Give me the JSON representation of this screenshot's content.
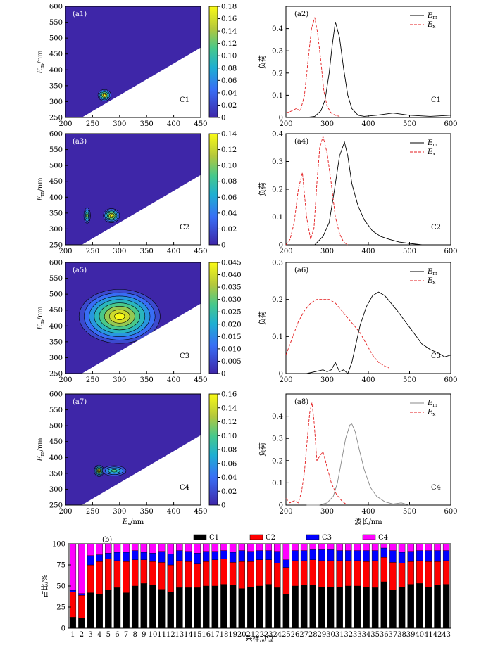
{
  "chart_data": [
    {
      "type": "heatmap",
      "panel": "a1",
      "label": "(a1)",
      "component": "C1",
      "xlabel": "",
      "ylabel": "E_m/nm",
      "xlim": [
        200,
        450
      ],
      "ylim": [
        250,
        600
      ],
      "xticks": [
        200,
        250,
        300,
        350,
        400,
        450
      ],
      "yticks": [
        250,
        300,
        350,
        400,
        450,
        500,
        550,
        600
      ],
      "colorbar": {
        "min": 0,
        "max": 0.18,
        "ticks": [
          "0",
          "0.02",
          "0.04",
          "0.06",
          "0.08",
          "0.10",
          "0.12",
          "0.14",
          "0.16",
          "0.18"
        ]
      },
      "peaks": [
        {
          "ex": 272,
          "em": 320,
          "value": 0.18,
          "ex_halfwidth": 12,
          "em_halfwidth": 18,
          "rings": 5
        }
      ],
      "blank_region": "below line Em = Ex + 20"
    },
    {
      "type": "line",
      "panel": "a2",
      "label": "(a2)",
      "component": "C1",
      "xlabel": "",
      "ylabel": "负荷",
      "xlim": [
        200,
        600
      ],
      "ylim": [
        0,
        0.5
      ],
      "xticks": [
        200,
        300,
        400,
        500,
        600
      ],
      "yticks": [
        0,
        0.1,
        0.2,
        0.3,
        0.4
      ],
      "legend": [
        "E_m",
        "E_x"
      ],
      "series": [
        {
          "name": "E_m",
          "style": "solid",
          "color": "#000000",
          "x": [
            250,
            270,
            285,
            295,
            305,
            312,
            320,
            330,
            340,
            350,
            360,
            375,
            390,
            420,
            460,
            500,
            550,
            600
          ],
          "y": [
            0.0,
            0.005,
            0.03,
            0.08,
            0.2,
            0.32,
            0.43,
            0.36,
            0.22,
            0.1,
            0.04,
            0.01,
            0.005,
            0.01,
            0.02,
            0.01,
            0.005,
            0.01
          ]
        },
        {
          "name": "E_x",
          "style": "dashed",
          "color": "#e31a1c",
          "x": [
            200,
            215,
            225,
            235,
            245,
            255,
            262,
            270,
            277,
            285,
            292,
            300,
            310,
            320,
            330
          ],
          "y": [
            0.02,
            0.03,
            0.04,
            0.03,
            0.1,
            0.28,
            0.4,
            0.45,
            0.38,
            0.25,
            0.12,
            0.05,
            0.02,
            0.01,
            0.005
          ]
        }
      ]
    },
    {
      "type": "heatmap",
      "panel": "a3",
      "label": "(a3)",
      "component": "C2",
      "xlabel": "",
      "ylabel": "E_m/nm",
      "xlim": [
        200,
        450
      ],
      "ylim": [
        250,
        600
      ],
      "xticks": [
        200,
        250,
        300,
        350,
        400,
        450
      ],
      "yticks": [
        250,
        300,
        350,
        400,
        450,
        500,
        550,
        600
      ],
      "colorbar": {
        "min": 0,
        "max": 0.14,
        "ticks": [
          "0",
          "0.02",
          "0.04",
          "0.06",
          "0.08",
          "0.10",
          "0.12",
          "0.14"
        ]
      },
      "peaks": [
        {
          "ex": 240,
          "em": 342,
          "value": 0.1,
          "ex_halfwidth": 6,
          "em_halfwidth": 24,
          "rings": 4
        },
        {
          "ex": 285,
          "em": 342,
          "value": 0.14,
          "ex_halfwidth": 15,
          "em_halfwidth": 22,
          "rings": 6
        }
      ],
      "blank_region": "below line Em = Ex + 20"
    },
    {
      "type": "line",
      "panel": "a4",
      "label": "(a4)",
      "component": "C2",
      "xlabel": "",
      "ylabel": "负荷",
      "xlim": [
        200,
        600
      ],
      "ylim": [
        0,
        0.4
      ],
      "xticks": [
        200,
        300,
        400,
        500,
        600
      ],
      "yticks": [
        0,
        0.1,
        0.2,
        0.3,
        0.4
      ],
      "legend": [
        "E_m",
        "E_x"
      ],
      "series": [
        {
          "name": "E_m",
          "style": "solid",
          "color": "#000000",
          "x": [
            250,
            270,
            290,
            305,
            318,
            330,
            342,
            350,
            360,
            375,
            390,
            410,
            430,
            450,
            475,
            500,
            530
          ],
          "y": [
            0.0,
            0.0,
            0.03,
            0.08,
            0.2,
            0.32,
            0.37,
            0.32,
            0.22,
            0.14,
            0.09,
            0.05,
            0.03,
            0.02,
            0.01,
            0.005,
            0.0
          ]
        },
        {
          "name": "E_x",
          "style": "dashed",
          "color": "#e31a1c",
          "x": [
            200,
            210,
            220,
            230,
            240,
            250,
            260,
            268,
            275,
            282,
            290,
            300,
            310,
            320,
            330,
            340,
            350
          ],
          "y": [
            0.0,
            0.02,
            0.08,
            0.2,
            0.26,
            0.1,
            0.02,
            0.06,
            0.22,
            0.35,
            0.39,
            0.33,
            0.22,
            0.1,
            0.04,
            0.01,
            0.0
          ]
        }
      ]
    },
    {
      "type": "heatmap",
      "panel": "a5",
      "label": "(a5)",
      "component": "C3",
      "xlabel": "",
      "ylabel": "E_m/nm",
      "xlim": [
        200,
        450
      ],
      "ylim": [
        250,
        600
      ],
      "xticks": [
        200,
        250,
        300,
        350,
        400,
        450
      ],
      "yticks": [
        250,
        300,
        350,
        400,
        450,
        500,
        550,
        600
      ],
      "colorbar": {
        "min": 0,
        "max": 0.045,
        "ticks": [
          "0",
          "0.005",
          "0.010",
          "0.015",
          "0.020",
          "0.025",
          "0.030",
          "0.035",
          "0.040",
          "0.045"
        ]
      },
      "peaks": [
        {
          "ex": 300,
          "em": 430,
          "value": 0.045,
          "ex_halfwidth": 75,
          "em_halfwidth": 85,
          "rings": 8
        }
      ],
      "blank_region": "below line Em = Ex + 20"
    },
    {
      "type": "line",
      "panel": "a6",
      "label": "(a6)",
      "component": "C3",
      "xlabel": "",
      "ylabel": "负荷",
      "xlim": [
        200,
        600
      ],
      "ylim": [
        0,
        0.3
      ],
      "xticks": [
        200,
        300,
        400,
        500,
        600
      ],
      "yticks": [
        0,
        0.1,
        0.2,
        0.3
      ],
      "legend": [
        "E_m",
        "E_x"
      ],
      "series": [
        {
          "name": "E_m",
          "style": "solid",
          "color": "#000000",
          "x": [
            250,
            270,
            290,
            300,
            310,
            320,
            330,
            340,
            350,
            360,
            370,
            380,
            395,
            410,
            425,
            440,
            455,
            470,
            490,
            510,
            530,
            550,
            570,
            585,
            600
          ],
          "y": [
            0.0,
            0.005,
            0.01,
            0.005,
            0.01,
            0.03,
            0.005,
            0.01,
            0.0,
            0.03,
            0.08,
            0.13,
            0.18,
            0.21,
            0.22,
            0.21,
            0.19,
            0.17,
            0.14,
            0.11,
            0.08,
            0.065,
            0.055,
            0.045,
            0.05
          ]
        },
        {
          "name": "E_x",
          "style": "dashed",
          "color": "#e31a1c",
          "x": [
            200,
            210,
            220,
            230,
            245,
            260,
            275,
            290,
            305,
            320,
            335,
            350,
            365,
            380,
            395,
            410,
            425,
            440,
            450
          ],
          "y": [
            0.05,
            0.08,
            0.11,
            0.14,
            0.17,
            0.19,
            0.2,
            0.2,
            0.2,
            0.19,
            0.17,
            0.15,
            0.13,
            0.11,
            0.08,
            0.05,
            0.03,
            0.02,
            0.015
          ]
        }
      ]
    },
    {
      "type": "heatmap",
      "panel": "a7",
      "label": "(a7)",
      "component": "C4",
      "xlabel": "E_x/nm",
      "ylabel": "E_m/nm",
      "xlim": [
        200,
        450
      ],
      "ylim": [
        250,
        600
      ],
      "xticks": [
        200,
        250,
        300,
        350,
        400,
        450
      ],
      "yticks": [
        250,
        300,
        350,
        400,
        450,
        500,
        550,
        600
      ],
      "colorbar": {
        "min": 0,
        "max": 0.16,
        "ticks": [
          "0",
          "0.02",
          "0.04",
          "0.06",
          "0.08",
          "0.10",
          "0.12",
          "0.14",
          "0.16"
        ]
      },
      "peaks": [
        {
          "ex": 262,
          "em": 358,
          "value": 0.16,
          "ex_halfwidth": 9,
          "em_halfwidth": 18,
          "rings": 6
        },
        {
          "ex": 290,
          "em": 358,
          "value": 0.1,
          "ex_halfwidth": 22,
          "em_halfwidth": 16,
          "rings": 4
        }
      ],
      "blank_region": "below line Em = Ex + 20"
    },
    {
      "type": "line",
      "panel": "a8",
      "label": "(a8)",
      "component": "C4",
      "xlabel": "波长/nm",
      "ylabel": "负荷",
      "xlim": [
        200,
        600
      ],
      "ylim": [
        0,
        0.5
      ],
      "xticks": [
        200,
        300,
        400,
        500,
        600
      ],
      "yticks": [
        0,
        0.1,
        0.2,
        0.3,
        0.4
      ],
      "legend": [
        "E_m",
        "E_x"
      ],
      "series": [
        {
          "name": "E_m",
          "style": "solid",
          "color": "#888888",
          "x": [
            250,
            280,
            300,
            315,
            325,
            335,
            345,
            355,
            360,
            368,
            378,
            390,
            405,
            420,
            440,
            460,
            480,
            500
          ],
          "y": [
            0.0,
            0.0,
            0.01,
            0.04,
            0.1,
            0.2,
            0.3,
            0.36,
            0.365,
            0.33,
            0.25,
            0.16,
            0.08,
            0.04,
            0.015,
            0.005,
            0.01,
            0.0
          ]
        },
        {
          "name": "E_x",
          "style": "dashed",
          "color": "#e31a1c",
          "x": [
            200,
            210,
            220,
            230,
            238,
            245,
            252,
            258,
            263,
            268,
            275,
            282,
            290,
            300,
            310,
            322,
            335,
            345
          ],
          "y": [
            0.03,
            0.01,
            0.02,
            0.01,
            0.06,
            0.15,
            0.3,
            0.42,
            0.46,
            0.38,
            0.2,
            0.22,
            0.24,
            0.17,
            0.1,
            0.05,
            0.02,
            0.005
          ]
        }
      ]
    },
    {
      "type": "bar",
      "stacked": true,
      "panel": "b",
      "label": "(b)",
      "xlabel": "采样点位",
      "ylabel": "占比/%",
      "ylim": [
        0,
        100
      ],
      "yticks": [
        0,
        25,
        50,
        75,
        100
      ],
      "legend_position": "top-center",
      "categories": [
        "1",
        "2",
        "3",
        "4",
        "5",
        "6",
        "7",
        "8",
        "9",
        "10",
        "11",
        "12",
        "13",
        "14",
        "15",
        "16",
        "17",
        "18",
        "19",
        "20",
        "21",
        "22",
        "23",
        "24",
        "25",
        "26",
        "27",
        "28",
        "29",
        "30",
        "31",
        "32",
        "33",
        "34",
        "35",
        "36",
        "37",
        "38",
        "39",
        "40",
        "41",
        "42",
        "43"
      ],
      "series": [
        {
          "name": "C1",
          "color": "#000000",
          "values": [
            13,
            12,
            42,
            40,
            45,
            48,
            42,
            50,
            53,
            51,
            46,
            43,
            48,
            48,
            48,
            50,
            50,
            52,
            51,
            47,
            49,
            50,
            52,
            48,
            40,
            50,
            51,
            51,
            49,
            49,
            49,
            50,
            50,
            49,
            48,
            55,
            45,
            49,
            52,
            53,
            49,
            51,
            52
          ]
        },
        {
          "name": "C2",
          "color": "#ff0000",
          "values": [
            30,
            27,
            33,
            39,
            37,
            32,
            37,
            31,
            28,
            28,
            32,
            32,
            32,
            31,
            28,
            29,
            31,
            30,
            27,
            32,
            30,
            31,
            29,
            29,
            32,
            30,
            29,
            30,
            31,
            31,
            31,
            30,
            30,
            30,
            32,
            29,
            33,
            28,
            27,
            27,
            30,
            28,
            28
          ]
        },
        {
          "name": "C3",
          "color": "#0000ff",
          "values": [
            2,
            2,
            11,
            8,
            7,
            10,
            11,
            11,
            9,
            10,
            13,
            13,
            12,
            12,
            13,
            12,
            10,
            10,
            12,
            13,
            12,
            11,
            11,
            14,
            9,
            12,
            12,
            12,
            13,
            13,
            12,
            12,
            12,
            13,
            12,
            11,
            14,
            13,
            12,
            12,
            13,
            13,
            12
          ]
        },
        {
          "name": "C4",
          "color": "#ff00ff",
          "values": [
            55,
            59,
            14,
            13,
            11,
            10,
            10,
            8,
            10,
            11,
            9,
            12,
            8,
            9,
            11,
            9,
            9,
            8,
            10,
            8,
            9,
            8,
            8,
            9,
            19,
            8,
            8,
            7,
            7,
            7,
            8,
            8,
            8,
            8,
            8,
            5,
            8,
            10,
            9,
            8,
            8,
            8,
            8
          ]
        }
      ]
    }
  ]
}
